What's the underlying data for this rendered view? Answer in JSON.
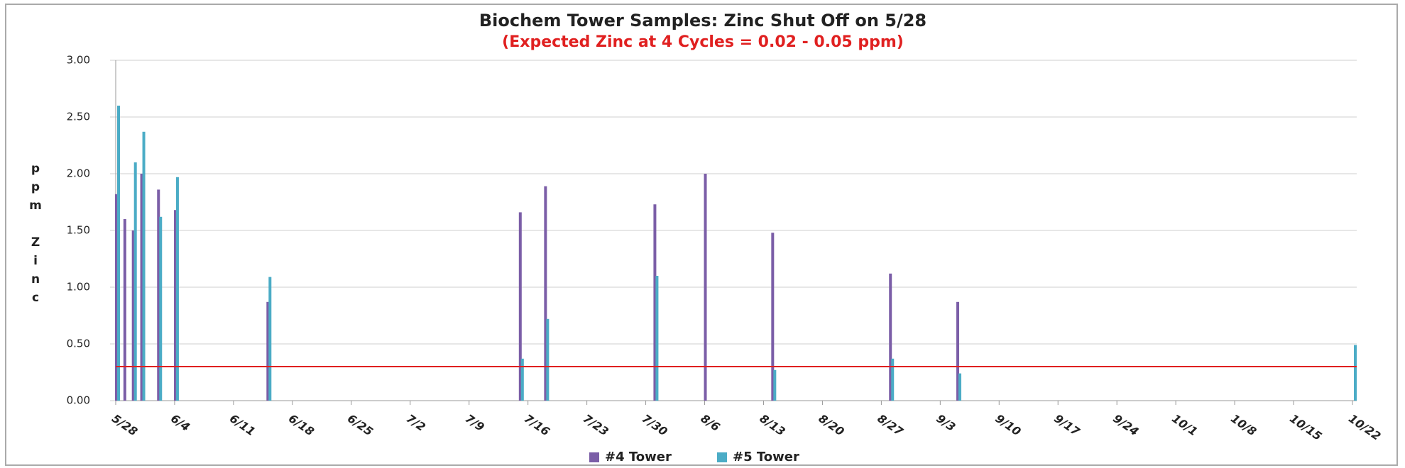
{
  "chart_data": {
    "type": "bar",
    "title": "Biochem Tower Samples: Zinc Shut Off on 5/28",
    "subtitle": "(Expected Zinc at 4 Cycles = 0.02 - 0.05 ppm)",
    "y_label": "ppm Zinc",
    "x": [
      "5/28",
      "5/29",
      "5/30",
      "5/31",
      "6/2",
      "6/4",
      "6/15",
      "7/15",
      "7/18",
      "7/31",
      "8/6",
      "8/14",
      "8/28",
      "9/5",
      "10/22"
    ],
    "series": [
      {
        "name": "#4 Tower",
        "color": "#7b5ea7",
        "values": [
          1.82,
          1.6,
          1.5,
          2.0,
          1.86,
          1.68,
          0.87,
          1.66,
          1.89,
          1.73,
          2.0,
          1.48,
          1.12,
          0.87,
          null
        ]
      },
      {
        "name": "#5 Tower",
        "color": "#4bacc6",
        "values": [
          2.6,
          null,
          2.1,
          2.37,
          1.62,
          1.97,
          1.09,
          0.37,
          0.72,
          1.1,
          null,
          0.27,
          0.37,
          0.24,
          0.49
        ]
      }
    ],
    "reference_line": {
      "value": 0.3,
      "color": "#e02020"
    },
    "xlim": [
      "5/28",
      "10/22"
    ],
    "xticks": [
      "5/28",
      "6/4",
      "6/11",
      "6/18",
      "6/25",
      "7/2",
      "7/9",
      "7/16",
      "7/23",
      "7/30",
      "8/6",
      "8/13",
      "8/20",
      "8/27",
      "9/3",
      "9/10",
      "9/17",
      "9/24",
      "10/1",
      "10/8",
      "10/15",
      "10/22"
    ],
    "ylim": [
      0,
      3
    ],
    "yticks": [
      {
        "value": 0,
        "label": "0.00"
      },
      {
        "value": 0.5,
        "label": "0.50"
      },
      {
        "value": 1,
        "label": "1.00"
      },
      {
        "value": 1.5,
        "label": "1.50"
      },
      {
        "value": 2,
        "label": "2.00"
      },
      {
        "value": 2.5,
        "label": "2.50"
      },
      {
        "value": 3,
        "label": "3.00"
      }
    ],
    "grid": true,
    "legend": "bottom"
  }
}
